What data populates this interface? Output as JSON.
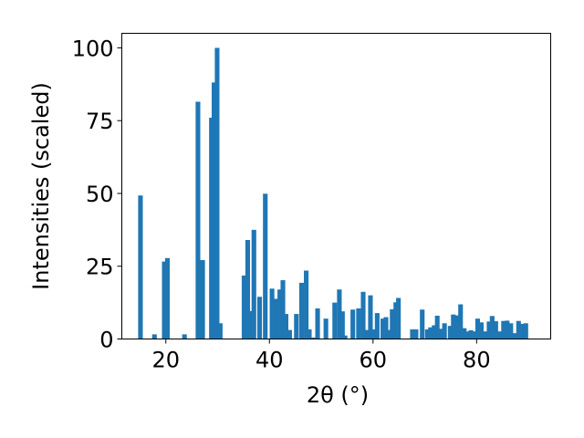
{
  "chart_data": {
    "type": "bar",
    "xlabel": "2θ (°)",
    "ylabel": "Intensities (scaled)",
    "xlim": [
      11.5,
      94.3
    ],
    "ylim": [
      0,
      105
    ],
    "x_ticks": [
      20,
      40,
      60,
      80
    ],
    "y_ticks": [
      0,
      25,
      50,
      75,
      100
    ],
    "bar_color": "#1f77b4",
    "bar_width": 0.9,
    "grid": false,
    "x": [
      15.1,
      17.8,
      19.7,
      20.3,
      23.6,
      26.2,
      27.1,
      28.8,
      29.3,
      29.9,
      30.5,
      35.1,
      35.8,
      36.4,
      37.0,
      38.1,
      39.2,
      40.5,
      41.3,
      42.0,
      42.6,
      43.2,
      43.9,
      45.2,
      46.2,
      47.1,
      47.7,
      48.5,
      49.3,
      50.9,
      52.6,
      53.5,
      54.1,
      54.6,
      56.1,
      57.2,
      58.1,
      58.8,
      59.5,
      60.2,
      60.8,
      61.9,
      62.5,
      63.1,
      63.7,
      64.4,
      64.9,
      67.6,
      68.3,
      69.5,
      70.5,
      71.1,
      71.8,
      72.4,
      73.1,
      73.8,
      74.9,
      75.5,
      76.2,
      76.9,
      77.6,
      78.2,
      78.9,
      79.6,
      80.2,
      80.9,
      81.6,
      82.4,
      83.0,
      83.7,
      84.5,
      85.2,
      85.9,
      86.6,
      87.3,
      88.1,
      88.8,
      89.5
    ],
    "values": [
      49.3,
      1.6,
      26.6,
      27.8,
      1.6,
      81.5,
      27.1,
      76.0,
      88.1,
      100.0,
      5.4,
      21.8,
      34.0,
      9.6,
      37.5,
      14.5,
      49.9,
      17.3,
      13.8,
      17.0,
      20.2,
      8.6,
      3.1,
      8.6,
      19.3,
      23.5,
      3.3,
      0.5,
      10.5,
      7.0,
      12.5,
      17.0,
      9.5,
      1.2,
      10.1,
      10.5,
      16.2,
      3.1,
      15.0,
      3.3,
      8.9,
      7.0,
      7.5,
      3.1,
      10.2,
      12.6,
      14.1,
      3.3,
      3.3,
      10.1,
      3.3,
      4.0,
      4.7,
      8.0,
      3.5,
      5.4,
      4.5,
      8.4,
      8.1,
      11.9,
      3.7,
      2.6,
      3.0,
      2.6,
      7.0,
      5.7,
      2.6,
      6.0,
      7.9,
      6.1,
      2.6,
      6.2,
      6.3,
      5.4,
      2.0,
      6.2,
      5.2,
      5.4
    ]
  }
}
